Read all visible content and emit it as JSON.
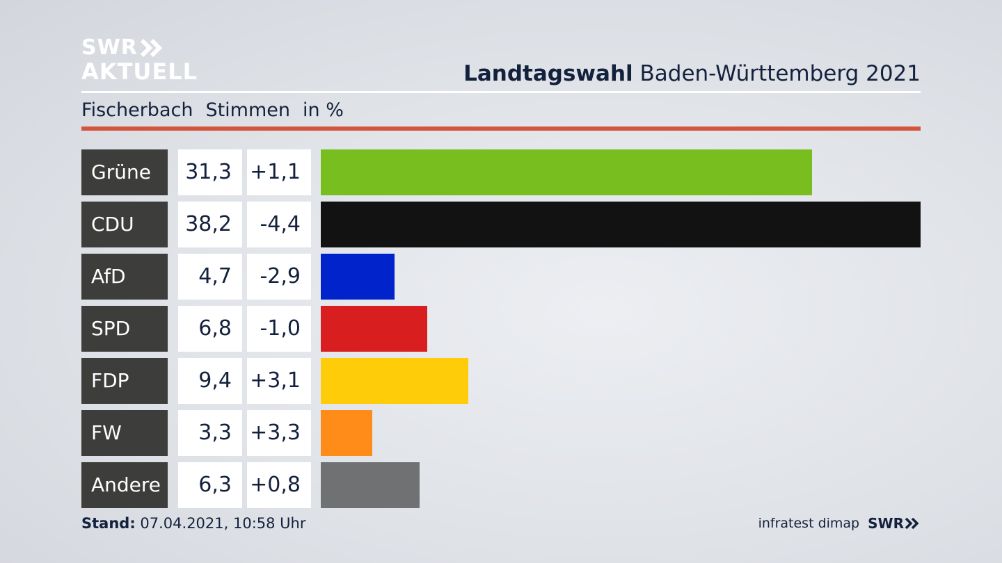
{
  "logo": {
    "line1": "SWR",
    "line2": "AKTUELL"
  },
  "header": {
    "title_bold": "Landtagswahl",
    "title_rest": " Baden-Württemberg 2021"
  },
  "subheader": {
    "place": "Fischerbach",
    "measure": "Stimmen",
    "unit": "in %"
  },
  "footer": {
    "stand_label": "Stand:",
    "stand_value": " 07.04.2021, 10:58 Uhr",
    "source": "infratest dimap",
    "brand": "SWR"
  },
  "chart_data": {
    "type": "bar",
    "categories": [
      "Grüne",
      "CDU",
      "AfD",
      "SPD",
      "FDP",
      "FW",
      "Andere"
    ],
    "values": [
      31.3,
      38.2,
      4.7,
      6.8,
      9.4,
      3.3,
      6.3
    ],
    "value_labels": [
      "31,3",
      "38,2",
      "4,7",
      "6,8",
      "9,4",
      "3,3",
      "6,3"
    ],
    "diff_labels": [
      "+1,1",
      "-4,4",
      "-2,9",
      "-1,0",
      "+3,1",
      "+3,3",
      "+0,8"
    ],
    "colors": [
      "#78be1e",
      "#121212",
      "#0023cc",
      "#d81e1e",
      "#ffcc0a",
      "#ff8c19",
      "#707173"
    ],
    "xlim": [
      0,
      38.2
    ]
  }
}
